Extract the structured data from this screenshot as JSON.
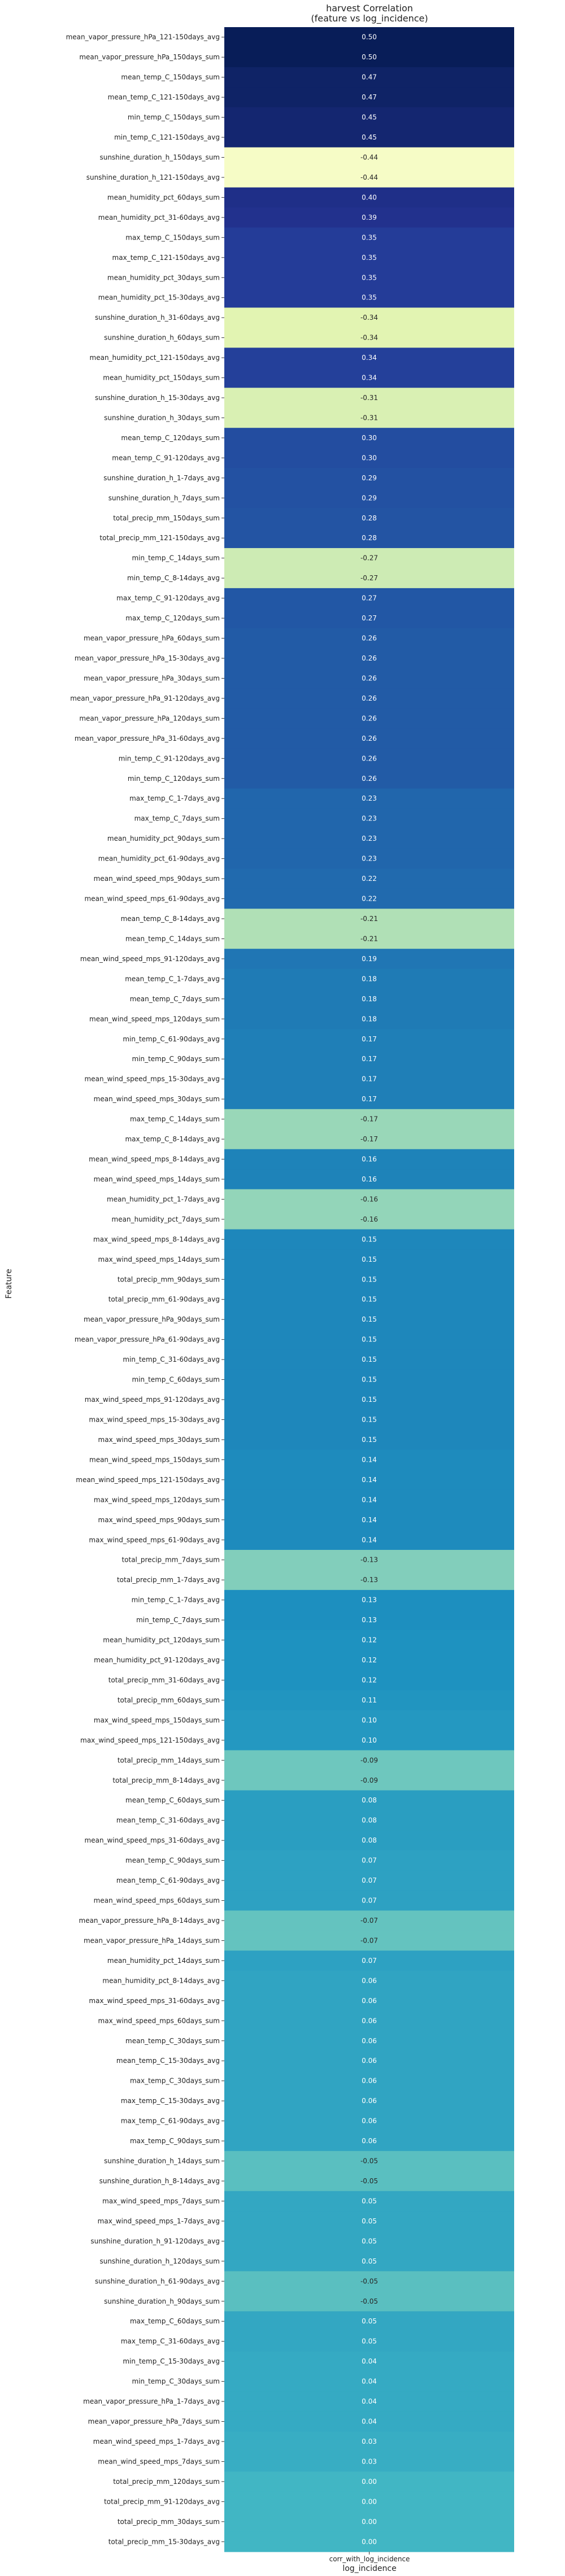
{
  "chart_data": {
    "type": "heatmap",
    "title": "harvest Correlation",
    "subtitle": "(feature vs log_incidence)",
    "ylabel": "Feature",
    "xlabel": "log_incidence",
    "column": "corr_with_log_incidence",
    "colormap": "YlGnBu",
    "value_range": [
      -0.5,
      0.5
    ],
    "rows": [
      {
        "feature": "mean_vapor_pressure_hPa_121-150days_avg",
        "value": 0.5
      },
      {
        "feature": "mean_vapor_pressure_hPa_150days_sum",
        "value": 0.5
      },
      {
        "feature": "mean_temp_C_150days_sum",
        "value": 0.47
      },
      {
        "feature": "mean_temp_C_121-150days_avg",
        "value": 0.47
      },
      {
        "feature": "min_temp_C_150days_sum",
        "value": 0.45
      },
      {
        "feature": "min_temp_C_121-150days_avg",
        "value": 0.45
      },
      {
        "feature": "sunshine_duration_h_150days_sum",
        "value": -0.44
      },
      {
        "feature": "sunshine_duration_h_121-150days_avg",
        "value": -0.44
      },
      {
        "feature": "mean_humidity_pct_60days_sum",
        "value": 0.4
      },
      {
        "feature": "mean_humidity_pct_31-60days_avg",
        "value": 0.39
      },
      {
        "feature": "max_temp_C_150days_sum",
        "value": 0.35
      },
      {
        "feature": "max_temp_C_121-150days_avg",
        "value": 0.35
      },
      {
        "feature": "mean_humidity_pct_30days_sum",
        "value": 0.35
      },
      {
        "feature": "mean_humidity_pct_15-30days_avg",
        "value": 0.35
      },
      {
        "feature": "sunshine_duration_h_31-60days_avg",
        "value": -0.34
      },
      {
        "feature": "sunshine_duration_h_60days_sum",
        "value": -0.34
      },
      {
        "feature": "mean_humidity_pct_121-150days_avg",
        "value": 0.34
      },
      {
        "feature": "mean_humidity_pct_150days_sum",
        "value": 0.34
      },
      {
        "feature": "sunshine_duration_h_15-30days_avg",
        "value": -0.31
      },
      {
        "feature": "sunshine_duration_h_30days_sum",
        "value": -0.31
      },
      {
        "feature": "mean_temp_C_120days_sum",
        "value": 0.3
      },
      {
        "feature": "mean_temp_C_91-120days_avg",
        "value": 0.3
      },
      {
        "feature": "sunshine_duration_h_1-7days_avg",
        "value": 0.29
      },
      {
        "feature": "sunshine_duration_h_7days_sum",
        "value": 0.29
      },
      {
        "feature": "total_precip_mm_150days_sum",
        "value": 0.28
      },
      {
        "feature": "total_precip_mm_121-150days_avg",
        "value": 0.28
      },
      {
        "feature": "min_temp_C_14days_sum",
        "value": -0.27
      },
      {
        "feature": "min_temp_C_8-14days_avg",
        "value": -0.27
      },
      {
        "feature": "max_temp_C_91-120days_avg",
        "value": 0.27
      },
      {
        "feature": "max_temp_C_120days_sum",
        "value": 0.27
      },
      {
        "feature": "mean_vapor_pressure_hPa_60days_sum",
        "value": 0.26
      },
      {
        "feature": "mean_vapor_pressure_hPa_15-30days_avg",
        "value": 0.26
      },
      {
        "feature": "mean_vapor_pressure_hPa_30days_sum",
        "value": 0.26
      },
      {
        "feature": "mean_vapor_pressure_hPa_91-120days_avg",
        "value": 0.26
      },
      {
        "feature": "mean_vapor_pressure_hPa_120days_sum",
        "value": 0.26
      },
      {
        "feature": "mean_vapor_pressure_hPa_31-60days_avg",
        "value": 0.26
      },
      {
        "feature": "min_temp_C_91-120days_avg",
        "value": 0.26
      },
      {
        "feature": "min_temp_C_120days_sum",
        "value": 0.26
      },
      {
        "feature": "max_temp_C_1-7days_avg",
        "value": 0.23
      },
      {
        "feature": "max_temp_C_7days_sum",
        "value": 0.23
      },
      {
        "feature": "mean_humidity_pct_90days_sum",
        "value": 0.23
      },
      {
        "feature": "mean_humidity_pct_61-90days_avg",
        "value": 0.23
      },
      {
        "feature": "mean_wind_speed_mps_90days_sum",
        "value": 0.22
      },
      {
        "feature": "mean_wind_speed_mps_61-90days_avg",
        "value": 0.22
      },
      {
        "feature": "mean_temp_C_8-14days_avg",
        "value": -0.21
      },
      {
        "feature": "mean_temp_C_14days_sum",
        "value": -0.21
      },
      {
        "feature": "mean_wind_speed_mps_91-120days_avg",
        "value": 0.19
      },
      {
        "feature": "mean_temp_C_1-7days_avg",
        "value": 0.18
      },
      {
        "feature": "mean_temp_C_7days_sum",
        "value": 0.18
      },
      {
        "feature": "mean_wind_speed_mps_120days_sum",
        "value": 0.18
      },
      {
        "feature": "min_temp_C_61-90days_avg",
        "value": 0.17
      },
      {
        "feature": "min_temp_C_90days_sum",
        "value": 0.17
      },
      {
        "feature": "mean_wind_speed_mps_15-30days_avg",
        "value": 0.17
      },
      {
        "feature": "mean_wind_speed_mps_30days_sum",
        "value": 0.17
      },
      {
        "feature": "max_temp_C_14days_sum",
        "value": -0.17
      },
      {
        "feature": "max_temp_C_8-14days_avg",
        "value": -0.17
      },
      {
        "feature": "mean_wind_speed_mps_8-14days_avg",
        "value": 0.16
      },
      {
        "feature": "mean_wind_speed_mps_14days_sum",
        "value": 0.16
      },
      {
        "feature": "mean_humidity_pct_1-7days_avg",
        "value": -0.16
      },
      {
        "feature": "mean_humidity_pct_7days_sum",
        "value": -0.16
      },
      {
        "feature": "max_wind_speed_mps_8-14days_avg",
        "value": 0.15
      },
      {
        "feature": "max_wind_speed_mps_14days_sum",
        "value": 0.15
      },
      {
        "feature": "total_precip_mm_90days_sum",
        "value": 0.15
      },
      {
        "feature": "total_precip_mm_61-90days_avg",
        "value": 0.15
      },
      {
        "feature": "mean_vapor_pressure_hPa_90days_sum",
        "value": 0.15
      },
      {
        "feature": "mean_vapor_pressure_hPa_61-90days_avg",
        "value": 0.15
      },
      {
        "feature": "min_temp_C_31-60days_avg",
        "value": 0.15
      },
      {
        "feature": "min_temp_C_60days_sum",
        "value": 0.15
      },
      {
        "feature": "max_wind_speed_mps_91-120days_avg",
        "value": 0.15
      },
      {
        "feature": "max_wind_speed_mps_15-30days_avg",
        "value": 0.15
      },
      {
        "feature": "max_wind_speed_mps_30days_sum",
        "value": 0.15
      },
      {
        "feature": "mean_wind_speed_mps_150days_sum",
        "value": 0.14
      },
      {
        "feature": "mean_wind_speed_mps_121-150days_avg",
        "value": 0.14
      },
      {
        "feature": "max_wind_speed_mps_120days_sum",
        "value": 0.14
      },
      {
        "feature": "max_wind_speed_mps_90days_sum",
        "value": 0.14
      },
      {
        "feature": "max_wind_speed_mps_61-90days_avg",
        "value": 0.14
      },
      {
        "feature": "total_precip_mm_7days_sum",
        "value": -0.13
      },
      {
        "feature": "total_precip_mm_1-7days_avg",
        "value": -0.13
      },
      {
        "feature": "min_temp_C_1-7days_avg",
        "value": 0.13
      },
      {
        "feature": "min_temp_C_7days_sum",
        "value": 0.13
      },
      {
        "feature": "mean_humidity_pct_120days_sum",
        "value": 0.12
      },
      {
        "feature": "mean_humidity_pct_91-120days_avg",
        "value": 0.12
      },
      {
        "feature": "total_precip_mm_31-60days_avg",
        "value": 0.12
      },
      {
        "feature": "total_precip_mm_60days_sum",
        "value": 0.11
      },
      {
        "feature": "max_wind_speed_mps_150days_sum",
        "value": 0.1
      },
      {
        "feature": "max_wind_speed_mps_121-150days_avg",
        "value": 0.1
      },
      {
        "feature": "total_precip_mm_14days_sum",
        "value": -0.09
      },
      {
        "feature": "total_precip_mm_8-14days_avg",
        "value": -0.09
      },
      {
        "feature": "mean_temp_C_60days_sum",
        "value": 0.08
      },
      {
        "feature": "mean_temp_C_31-60days_avg",
        "value": 0.08
      },
      {
        "feature": "mean_wind_speed_mps_31-60days_avg",
        "value": 0.08
      },
      {
        "feature": "mean_temp_C_90days_sum",
        "value": 0.07
      },
      {
        "feature": "mean_temp_C_61-90days_avg",
        "value": 0.07
      },
      {
        "feature": "mean_wind_speed_mps_60days_sum",
        "value": 0.07
      },
      {
        "feature": "mean_vapor_pressure_hPa_8-14days_avg",
        "value": -0.07
      },
      {
        "feature": "mean_vapor_pressure_hPa_14days_sum",
        "value": -0.07
      },
      {
        "feature": "mean_humidity_pct_14days_sum",
        "value": 0.07
      },
      {
        "feature": "mean_humidity_pct_8-14days_avg",
        "value": 0.06
      },
      {
        "feature": "max_wind_speed_mps_31-60days_avg",
        "value": 0.06
      },
      {
        "feature": "max_wind_speed_mps_60days_sum",
        "value": 0.06
      },
      {
        "feature": "mean_temp_C_30days_sum",
        "value": 0.06
      },
      {
        "feature": "mean_temp_C_15-30days_avg",
        "value": 0.06
      },
      {
        "feature": "max_temp_C_30days_sum",
        "value": 0.06
      },
      {
        "feature": "max_temp_C_15-30days_avg",
        "value": 0.06
      },
      {
        "feature": "max_temp_C_61-90days_avg",
        "value": 0.06
      },
      {
        "feature": "max_temp_C_90days_sum",
        "value": 0.06
      },
      {
        "feature": "sunshine_duration_h_14days_sum",
        "value": -0.05
      },
      {
        "feature": "sunshine_duration_h_8-14days_avg",
        "value": -0.05
      },
      {
        "feature": "max_wind_speed_mps_7days_sum",
        "value": 0.05
      },
      {
        "feature": "max_wind_speed_mps_1-7days_avg",
        "value": 0.05
      },
      {
        "feature": "sunshine_duration_h_91-120days_avg",
        "value": 0.05
      },
      {
        "feature": "sunshine_duration_h_120days_sum",
        "value": 0.05
      },
      {
        "feature": "sunshine_duration_h_61-90days_avg",
        "value": -0.05
      },
      {
        "feature": "sunshine_duration_h_90days_sum",
        "value": -0.05
      },
      {
        "feature": "max_temp_C_60days_sum",
        "value": 0.05
      },
      {
        "feature": "max_temp_C_31-60days_avg",
        "value": 0.05
      },
      {
        "feature": "min_temp_C_15-30days_avg",
        "value": 0.04
      },
      {
        "feature": "min_temp_C_30days_sum",
        "value": 0.04
      },
      {
        "feature": "mean_vapor_pressure_hPa_1-7days_avg",
        "value": 0.04
      },
      {
        "feature": "mean_vapor_pressure_hPa_7days_sum",
        "value": 0.04
      },
      {
        "feature": "mean_wind_speed_mps_1-7days_avg",
        "value": 0.03
      },
      {
        "feature": "mean_wind_speed_mps_7days_sum",
        "value": 0.03
      },
      {
        "feature": "total_precip_mm_120days_sum",
        "value": 0.0
      },
      {
        "feature": "total_precip_mm_91-120days_avg",
        "value": 0.0
      },
      {
        "feature": "total_precip_mm_30days_sum",
        "value": -0.0
      },
      {
        "feature": "total_precip_mm_15-30days_avg",
        "value": -0.0
      }
    ]
  }
}
